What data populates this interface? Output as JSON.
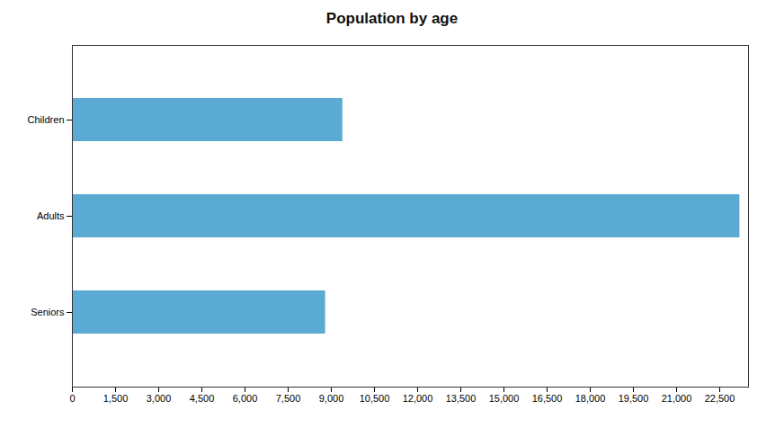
{
  "chart_data": {
    "type": "bar",
    "orientation": "horizontal",
    "title": "Population by age",
    "categories": [
      "Seniors",
      "Adults",
      "Children"
    ],
    "values": [
      8800,
      23200,
      9400
    ],
    "color": "#5baad4",
    "xlim": [
      0,
      23500
    ],
    "xticks": [
      0,
      {
        "value": 1500,
        "label": "1,500"
      },
      {
        "value": 3000,
        "label": "3,000"
      },
      {
        "value": 4500,
        "label": "4,500"
      },
      {
        "value": 6000,
        "label": "6,000"
      },
      {
        "value": 7500,
        "label": "7,500"
      },
      {
        "value": 9000,
        "label": "9,000"
      },
      {
        "value": 10500,
        "label": "10,500"
      },
      {
        "value": 12000,
        "label": "12,000"
      },
      {
        "value": 13500,
        "label": "13,500"
      },
      {
        "value": 15000,
        "label": "15,000"
      },
      {
        "value": 16500,
        "label": "16,500"
      },
      {
        "value": 18000,
        "label": "18,000"
      },
      {
        "value": 19500,
        "label": "19,500"
      },
      {
        "value": 21000,
        "label": "21,000"
      },
      {
        "value": 22500,
        "label": "22,500"
      }
    ],
    "grid": false
  }
}
